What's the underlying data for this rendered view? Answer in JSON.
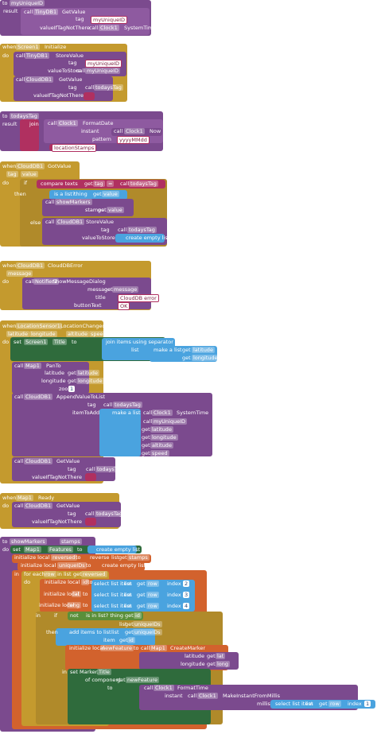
{
  "blocks": [
    {
      "texts": [
        "to",
        "myUniqueID",
        "result",
        "call",
        "TinyDB1",
        "GetValue",
        "tag",
        "myUniqueID",
        "valueIfTagNotThere",
        "call",
        "Clock1",
        "SystemTime"
      ]
    },
    {
      "texts": [
        "when",
        "Screen1",
        "Initialize",
        "do",
        "call",
        "TinyDB1",
        "StoreValue",
        "tag",
        "myUniqueID",
        "valueToStore",
        "call",
        "myUniqueID",
        "call",
        "CloudDB1",
        "GetValue",
        "tag",
        "call",
        "todaysTag",
        "valueIfTagNotThere"
      ]
    },
    {
      "texts": [
        "to",
        "todaysTag",
        "result",
        "join",
        "call",
        "Clock1",
        "FormatDate",
        "instant",
        "call",
        "Clock1",
        "Now",
        "pattern",
        "yyyyMMdd",
        "locationStamps"
      ]
    },
    {
      "texts": [
        "when",
        "CloudDB1",
        "GotValue",
        "tag",
        "value",
        "do",
        "if",
        "compare texts",
        "get",
        "tag",
        "=",
        "call",
        "todaysTag",
        "then",
        "is a list?",
        "thing",
        "get",
        "value",
        "call",
        "showMarkers",
        "stamps",
        "get",
        "value",
        "else",
        "call",
        "CloudDB1",
        "StoreValue",
        "tag",
        "call",
        "todaysTag",
        "valueToStore",
        "create empty list"
      ]
    },
    {
      "texts": [
        "when",
        "CloudDB1",
        "CloudDBError",
        "message",
        "do",
        "call",
        "Notifier1",
        "ShowMessageDialog",
        "message",
        "get",
        "message",
        "title",
        "CloudDB error",
        "buttonText",
        "OK"
      ]
    },
    {
      "texts": [
        "when",
        "LocationSensor1",
        "LocationChanged",
        "latitude",
        "longitude",
        "altitude",
        "speed",
        "do",
        "set",
        "Screen1",
        "Title",
        "to",
        "join items using separator",
        "list",
        "make a list",
        "get",
        "latitude",
        "get",
        "longitude",
        "call",
        "Map1",
        "PanTo",
        "latitude",
        "get",
        "latitude",
        "longitude",
        "get",
        "longitude",
        "zoom",
        "1",
        "call",
        "CloudDB1",
        "AppendValueToList",
        "tag",
        "call",
        "todaysTag",
        "itemToAdd",
        "make a list",
        "call",
        "Clock1",
        "SystemTime",
        "call",
        "myUniqueID",
        "get",
        "latitude",
        "get",
        "longitude",
        "get",
        "altitude",
        "get",
        "speed",
        "call",
        "CloudDB1",
        "GetValue",
        "tag",
        "call",
        "todaysTag",
        "valueIfTagNotThere"
      ]
    },
    {
      "texts": [
        "when",
        "Map1",
        "Ready",
        "do",
        "call",
        "CloudDB1",
        "GetValue",
        "tag",
        "call",
        "todaysTag",
        "valueIfTagNotThere"
      ]
    },
    {
      "texts": [
        "to",
        "showMarkers",
        "stamps",
        "do",
        "set",
        "Map1",
        "Features",
        "to",
        "create empty list",
        "initialize local",
        "reversed",
        "to",
        "reverse",
        "list",
        "get",
        "stamps",
        "initialize local",
        "uniqueIDs",
        "to",
        "create empty list",
        "in",
        "for each",
        "row",
        "in list",
        "get",
        "reversed",
        "do",
        "initialize local",
        "id",
        "to",
        "select list item",
        "list",
        "get",
        "row",
        "index",
        "2",
        "initialize local",
        "lat",
        "to",
        "select list item",
        "list",
        "get",
        "row",
        "index",
        "3",
        "initialize local",
        "long",
        "to",
        "select list item",
        "list",
        "get",
        "row",
        "index",
        "4",
        "in",
        "if",
        "not",
        "is in list? thing",
        "get",
        "id",
        "list",
        "get",
        "uniqueIDs",
        "then",
        "add items to list",
        "list",
        "get",
        "uniqueIDs",
        "item",
        "get",
        "id",
        "initialize local",
        "newFeature",
        "to",
        "call",
        "Map1",
        "CreateMarker",
        "latitude",
        "get",
        "lat",
        "longitude",
        "get",
        "long",
        "in",
        "set Marker.",
        "Title",
        "of component",
        "get",
        "newFeature",
        "to",
        "call",
        "Clock1",
        "FormatTime",
        "instant",
        "call",
        "Clock1",
        "MakeInstantFromMillis",
        "millis",
        "select list item",
        "list",
        "get",
        "row",
        "index",
        "1"
      ]
    }
  ]
}
